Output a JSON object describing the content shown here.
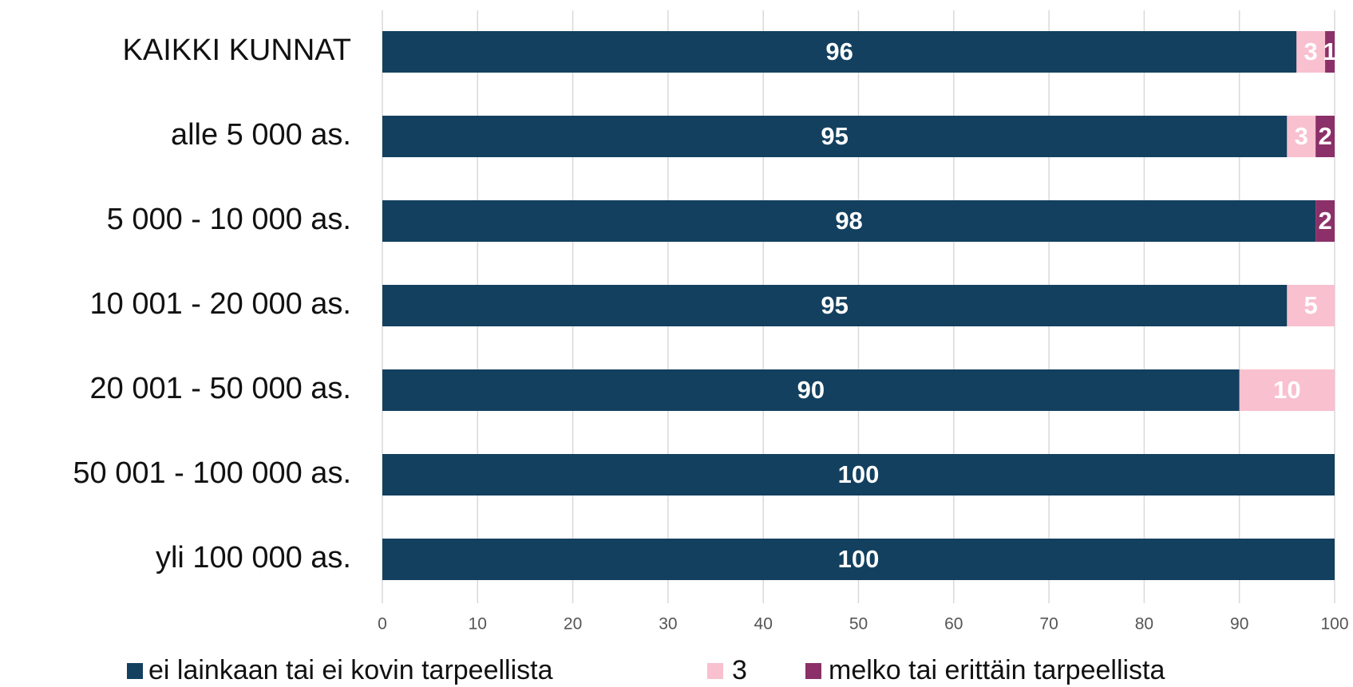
{
  "chart_data": {
    "type": "stacked-barh",
    "categories": [
      "KAIKKI KUNNAT",
      "alle 5 000 as.",
      "5 000 - 10 000 as.",
      "10 001 - 20 000 as.",
      "20 001 - 50 000 as.",
      "50 001 - 100 000 as.",
      "yli 100 000 as."
    ],
    "series": [
      {
        "name": "ei lainkaan tai ei kovin tarpeellista",
        "color": "#13405f",
        "values": [
          96,
          95,
          98,
          95,
          90,
          100,
          100
        ]
      },
      {
        "name": "3",
        "color": "#f9c0cf",
        "values": [
          3,
          3,
          null,
          5,
          10,
          null,
          null
        ]
      },
      {
        "name": "melko tai erittäin tarpeellista",
        "color": "#8b3068",
        "values": [
          1,
          2,
          2,
          null,
          null,
          null,
          null
        ]
      }
    ],
    "xlim": [
      0,
      100
    ],
    "xticks": [
      0,
      10,
      20,
      30,
      40,
      50,
      60,
      70,
      80,
      90,
      100
    ],
    "grid": true,
    "legend": "bottom"
  }
}
